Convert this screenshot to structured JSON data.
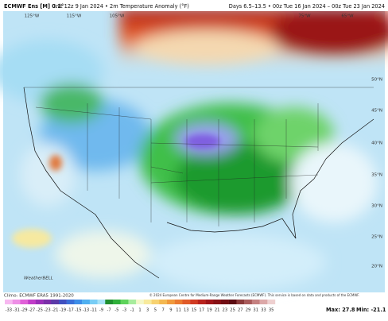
{
  "header": {
    "model": "ECMWF Ens [M] 0.1°",
    "info": "Init 12z 9 Jan 2024 • 2m Temperature Anomaly (°F)",
    "valid": "Days 6.5–13.5 • 00z Tue 16 Jan 2024 – 00z Tue 23 Jan 2024"
  },
  "map": {
    "lon_labels": [
      "125°W",
      "115°W",
      "105°W",
      "75°W",
      "65°W"
    ],
    "lat_labels": [
      "50°N",
      "45°N",
      "40°N",
      "35°N",
      "30°N",
      "25°N",
      "20°N"
    ],
    "watermark": "WeatherBELL"
  },
  "footer": {
    "climo": "Climo: ECMWF ERA5 1991-2020",
    "credit": "© 2024 European Centre for Medium-Range Weather Forecasts (ECMWF). This service is based on data and products of the ECMWF.",
    "max": "Max: 27.8",
    "min": "Min: -21.1"
  },
  "colorbar": {
    "ticks": [
      -33,
      -31,
      -29,
      -27,
      -25,
      -23,
      -21,
      -19,
      -17,
      -15,
      -13,
      -11,
      -9,
      -7,
      -5,
      -3,
      -1,
      1,
      3,
      5,
      7,
      9,
      11,
      13,
      15,
      17,
      19,
      21,
      23,
      25,
      27,
      29,
      31,
      33,
      35
    ],
    "colors": [
      "#f7b8f0",
      "#ee8fe6",
      "#e060d8",
      "#c03cc8",
      "#9a2fb8",
      "#7a2fa8",
      "#5b3aa8",
      "#4050c0",
      "#3a6fd8",
      "#3d8ee8",
      "#4fb0f0",
      "#78cdf5",
      "#a7e2f7",
      "#1f8f2f",
      "#2fb03a",
      "#5ed35a",
      "#a8ec9d",
      "#f4f7c8",
      "#f8ea9c",
      "#f7d270",
      "#f4b850",
      "#f09a3c",
      "#ea7a30",
      "#e05a28",
      "#d03a22",
      "#b8221c",
      "#9e1418",
      "#861014",
      "#700c12",
      "#5a0a10",
      "#8a3a3a",
      "#a85a5a",
      "#c48080",
      "#dca8a8",
      "#eed0d0"
    ]
  }
}
